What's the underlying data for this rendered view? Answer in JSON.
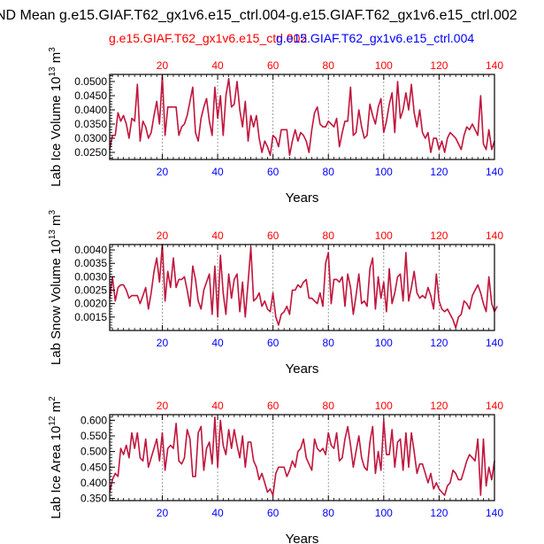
{
  "page": {
    "title": "ND Mean g.e15.GIAF.T62_gx1v6.e15_ctrl.004-g.e15.GIAF.T62_gx1v6.e15_ctrl.002",
    "legend_red": "g.e15.GIAF.T62_gx1v6.e15_ctrl.002",
    "legend_blue": "g.e15.GIAF.T62_gx1v6.e15_ctrl.004"
  },
  "colors": {
    "series_a": "#e0162b",
    "series_b": "#b01a4a",
    "top_axis": "#ff0000",
    "bottom_axis": "#0000ff",
    "frame": "#000000",
    "grid": "#888888"
  },
  "chart_data": [
    {
      "type": "line",
      "title": "",
      "xlabel": "Years",
      "ylabel_base": "Lab Ice Volume 10",
      "ylabel_exp": "13",
      "ylabel_unit": " m",
      "ylabel_unit_exp": "3",
      "xlim": [
        1,
        140
      ],
      "ylim": [
        0.0225,
        0.0525
      ],
      "yticks": [
        0.025,
        0.03,
        0.035,
        0.04,
        0.045,
        0.05
      ],
      "yticklabels": [
        "0.0250",
        "0.0300",
        "0.0350",
        "0.0400",
        "0.0450",
        "0.0500"
      ],
      "yminor": 0.001,
      "xticks": [
        20,
        40,
        60,
        80,
        100,
        120,
        140
      ],
      "xticklabels": [
        "20",
        "40",
        "60",
        "80",
        "100",
        "120",
        "140"
      ],
      "grid_x": [
        20,
        40,
        60,
        80,
        100,
        120
      ],
      "series": [
        {
          "name": "g.e15.GIAF.T62_gx1v6.e15_ctrl.002",
          "values": [
            0.026,
            0.031,
            0.031,
            0.039,
            0.036,
            0.038,
            0.035,
            0.03,
            0.037,
            0.036,
            0.049,
            0.029,
            0.036,
            0.034,
            0.03,
            0.032,
            0.038,
            0.043,
            0.035,
            0.052,
            0.031,
            0.041,
            0.041,
            0.041,
            0.041,
            0.031,
            0.034,
            0.035,
            0.038,
            0.043,
            0.048,
            0.032,
            0.029,
            0.037,
            0.041,
            0.044,
            0.036,
            0.031,
            0.048,
            0.037,
            0.045,
            0.031,
            0.045,
            0.051,
            0.041,
            0.042,
            0.05,
            0.04,
            0.034,
            0.043,
            0.029,
            0.038,
            0.034,
            0.038,
            0.03,
            0.025,
            0.029,
            0.027,
            0.024,
            0.031,
            0.03,
            0.027,
            0.033,
            0.033,
            0.033,
            0.024,
            0.029,
            0.033,
            0.029,
            0.032,
            0.031,
            0.029,
            0.025,
            0.033,
            0.039,
            0.041,
            0.035,
            0.034,
            0.034,
            0.036,
            0.035,
            0.034,
            0.037,
            0.027,
            0.032,
            0.036,
            0.036,
            0.048,
            0.031,
            0.032,
            0.04,
            0.034,
            0.03,
            0.031,
            0.042,
            0.038,
            0.035,
            0.041,
            0.044,
            0.032,
            0.036,
            0.042,
            0.046,
            0.032,
            0.05,
            0.037,
            0.04,
            0.046,
            0.04,
            0.049,
            0.039,
            0.034,
            0.04,
            0.032,
            0.03,
            0.032,
            0.025,
            0.03,
            0.03,
            0.026,
            0.029,
            0.025,
            0.03,
            0.032,
            0.031,
            0.03,
            0.028,
            0.026,
            0.031,
            0.034,
            0.033,
            0.035,
            0.033,
            0.031,
            0.045,
            0.028,
            0.026,
            0.033,
            0.026,
            0.029
          ]
        },
        {
          "name": "g.e15.GIAF.T62_gx1v6.e15_ctrl.004",
          "values": [
            0.026,
            0.031,
            0.031,
            0.039,
            0.036,
            0.038,
            0.035,
            0.03,
            0.037,
            0.036,
            0.049,
            0.029,
            0.036,
            0.034,
            0.03,
            0.032,
            0.038,
            0.043,
            0.035,
            0.051,
            0.031,
            0.041,
            0.041,
            0.041,
            0.041,
            0.031,
            0.034,
            0.035,
            0.038,
            0.043,
            0.048,
            0.032,
            0.029,
            0.037,
            0.041,
            0.044,
            0.036,
            0.031,
            0.048,
            0.037,
            0.045,
            0.031,
            0.045,
            0.051,
            0.041,
            0.042,
            0.05,
            0.04,
            0.034,
            0.043,
            0.029,
            0.038,
            0.034,
            0.038,
            0.03,
            0.025,
            0.029,
            0.027,
            0.024,
            0.031,
            0.03,
            0.027,
            0.033,
            0.033,
            0.033,
            0.024,
            0.029,
            0.033,
            0.029,
            0.032,
            0.031,
            0.029,
            0.025,
            0.033,
            0.039,
            0.041,
            0.035,
            0.034,
            0.034,
            0.036,
            0.035,
            0.034,
            0.037,
            0.027,
            0.032,
            0.036,
            0.036,
            0.048,
            0.031,
            0.032,
            0.04,
            0.034,
            0.03,
            0.031,
            0.042,
            0.038,
            0.035,
            0.041,
            0.044,
            0.032,
            0.036,
            0.042,
            0.046,
            0.032,
            0.05,
            0.037,
            0.04,
            0.046,
            0.04,
            0.049,
            0.039,
            0.034,
            0.04,
            0.032,
            0.03,
            0.032,
            0.025,
            0.03,
            0.03,
            0.026,
            0.029,
            0.025,
            0.03,
            0.032,
            0.031,
            0.03,
            0.028,
            0.026,
            0.031,
            0.034,
            0.033,
            0.035,
            0.033,
            0.031,
            0.045,
            0.028,
            0.026,
            0.033,
            0.026,
            0.029
          ]
        }
      ]
    },
    {
      "type": "line",
      "title": "",
      "xlabel": "Years",
      "ylabel_base": "Lab Snow Volume 10",
      "ylabel_exp": "13",
      "ylabel_unit": " m",
      "ylabel_unit_exp": "3",
      "xlim": [
        1,
        140
      ],
      "ylim": [
        0.001,
        0.0042
      ],
      "yticks": [
        0.0015,
        0.002,
        0.0025,
        0.003,
        0.0035,
        0.004
      ],
      "yticklabels": [
        "0.0015",
        "0.0020",
        "0.0025",
        "0.0030",
        "0.0035",
        "0.0040"
      ],
      "yminor": 0.0001,
      "xticks": [
        20,
        40,
        60,
        80,
        100,
        120,
        140
      ],
      "xticklabels": [
        "20",
        "40",
        "60",
        "80",
        "100",
        "120",
        "140"
      ],
      "grid_x": [
        20,
        40,
        60,
        80,
        100,
        120
      ],
      "series": [
        {
          "name": "g.e15.GIAF.T62_gx1v6.e15_ctrl.002",
          "values": [
            0.0022,
            0.003,
            0.0021,
            0.0026,
            0.0027,
            0.0027,
            0.0025,
            0.0022,
            0.0023,
            0.0023,
            0.0023,
            0.002,
            0.0023,
            0.0026,
            0.0018,
            0.0024,
            0.0032,
            0.0037,
            0.0028,
            0.0042,
            0.0021,
            0.0032,
            0.0026,
            0.0037,
            0.0026,
            0.0029,
            0.0029,
            0.003,
            0.0025,
            0.0019,
            0.0034,
            0.0029,
            0.0021,
            0.0018,
            0.0025,
            0.0028,
            0.0031,
            0.0016,
            0.0034,
            0.0015,
            0.0038,
            0.0024,
            0.0016,
            0.0031,
            0.0022,
            0.0029,
            0.0031,
            0.0017,
            0.0028,
            0.0015,
            0.0028,
            0.0041,
            0.0021,
            0.0022,
            0.0024,
            0.0019,
            0.0021,
            0.0018,
            0.0017,
            0.0024,
            0.0015,
            0.0012,
            0.0016,
            0.0017,
            0.0019,
            0.0016,
            0.0025,
            0.0025,
            0.0027,
            0.0026,
            0.0028,
            0.0029,
            0.0022,
            0.0022,
            0.0021,
            0.002,
            0.0024,
            0.0019,
            0.0035,
            0.0039,
            0.002,
            0.0029,
            0.0029,
            0.0028,
            0.003,
            0.0019,
            0.0031,
            0.0026,
            0.0016,
            0.0023,
            0.0031,
            0.002,
            0.0021,
            0.0019,
            0.0033,
            0.0037,
            0.0018,
            0.003,
            0.0022,
            0.0028,
            0.0017,
            0.0033,
            0.002,
            0.0024,
            0.003,
            0.0031,
            0.0021,
            0.0039,
            0.0021,
            0.0026,
            0.0032,
            0.0024,
            0.0022,
            0.0023,
            0.0022,
            0.0026,
            0.0023,
            0.0018,
            0.0031,
            0.0021,
            0.0018,
            0.0017,
            0.0018,
            0.0016,
            0.0014,
            0.0011,
            0.0015,
            0.0016,
            0.0021,
            0.002,
            0.0018,
            0.0023,
            0.0025,
            0.0027,
            0.0024,
            0.002,
            0.0017,
            0.003,
            0.002,
            0.0017,
            0.0019
          ]
        },
        {
          "name": "g.e15.GIAF.T62_gx1v6.e15_ctrl.004",
          "values": [
            0.0022,
            0.003,
            0.0021,
            0.0026,
            0.0027,
            0.0027,
            0.0025,
            0.0022,
            0.0023,
            0.0023,
            0.0023,
            0.002,
            0.0023,
            0.0026,
            0.0018,
            0.0024,
            0.0032,
            0.0037,
            0.0028,
            0.0042,
            0.0021,
            0.0032,
            0.0026,
            0.0037,
            0.0026,
            0.0029,
            0.0029,
            0.003,
            0.0025,
            0.0019,
            0.0034,
            0.0029,
            0.0021,
            0.0018,
            0.0025,
            0.0028,
            0.0031,
            0.0016,
            0.0034,
            0.0015,
            0.0038,
            0.0024,
            0.0016,
            0.0031,
            0.0022,
            0.0029,
            0.0031,
            0.0017,
            0.0028,
            0.0015,
            0.0028,
            0.0041,
            0.0021,
            0.0022,
            0.0024,
            0.0019,
            0.0021,
            0.0018,
            0.0017,
            0.0024,
            0.0015,
            0.0012,
            0.0016,
            0.0017,
            0.0019,
            0.0016,
            0.0025,
            0.0025,
            0.0027,
            0.0026,
            0.0028,
            0.0029,
            0.0022,
            0.0022,
            0.0021,
            0.002,
            0.0024,
            0.0019,
            0.0035,
            0.0039,
            0.002,
            0.0029,
            0.0029,
            0.0028,
            0.003,
            0.0019,
            0.0031,
            0.0026,
            0.0016,
            0.0023,
            0.0031,
            0.002,
            0.0021,
            0.0019,
            0.0033,
            0.0037,
            0.0018,
            0.003,
            0.0022,
            0.0028,
            0.0017,
            0.0033,
            0.002,
            0.0024,
            0.003,
            0.0031,
            0.0021,
            0.0039,
            0.0021,
            0.0026,
            0.0032,
            0.0024,
            0.0022,
            0.0023,
            0.0022,
            0.0026,
            0.0023,
            0.0018,
            0.0031,
            0.0021,
            0.0018,
            0.0017,
            0.0018,
            0.0016,
            0.0014,
            0.0011,
            0.0015,
            0.0016,
            0.0021,
            0.002,
            0.0018,
            0.0023,
            0.0025,
            0.0027,
            0.0024,
            0.002,
            0.0017,
            0.003,
            0.002,
            0.0017,
            0.0019
          ]
        }
      ]
    },
    {
      "type": "line",
      "title": "",
      "xlabel": "Years",
      "ylabel_base": "Lab Ice Area 10",
      "ylabel_exp": "12",
      "ylabel_unit": " m",
      "ylabel_unit_exp": "2",
      "xlim": [
        1,
        140
      ],
      "ylim": [
        0.343,
        0.618
      ],
      "yticks": [
        0.35,
        0.4,
        0.45,
        0.5,
        0.55,
        0.6
      ],
      "yticklabels": [
        "0.350",
        "0.400",
        "0.450",
        "0.500",
        "0.550",
        "0.600"
      ],
      "yminor": 0.01,
      "xticks": [
        20,
        40,
        60,
        80,
        100,
        120,
        140
      ],
      "xticklabels": [
        "20",
        "40",
        "60",
        "80",
        "100",
        "120",
        "140"
      ],
      "grid_x": [
        20,
        40,
        60,
        80,
        100,
        120
      ],
      "series": [
        {
          "name": "g.e15.GIAF.T62_gx1v6.e15_ctrl.002",
          "values": [
            0.37,
            0.41,
            0.43,
            0.42,
            0.51,
            0.49,
            0.52,
            0.48,
            0.56,
            0.51,
            0.56,
            0.48,
            0.47,
            0.54,
            0.45,
            0.48,
            0.51,
            0.54,
            0.47,
            0.56,
            0.44,
            0.51,
            0.52,
            0.51,
            0.59,
            0.47,
            0.46,
            0.48,
            0.57,
            0.54,
            0.42,
            0.42,
            0.56,
            0.58,
            0.44,
            0.51,
            0.53,
            0.46,
            0.61,
            0.45,
            0.6,
            0.52,
            0.49,
            0.57,
            0.51,
            0.57,
            0.52,
            0.48,
            0.55,
            0.45,
            0.53,
            0.53,
            0.47,
            0.45,
            0.41,
            0.43,
            0.4,
            0.37,
            0.38,
            0.36,
            0.43,
            0.45,
            0.45,
            0.45,
            0.42,
            0.44,
            0.47,
            0.45,
            0.5,
            0.51,
            0.54,
            0.48,
            0.46,
            0.44,
            0.54,
            0.51,
            0.5,
            0.51,
            0.49,
            0.56,
            0.52,
            0.51,
            0.56,
            0.47,
            0.48,
            0.54,
            0.58,
            0.52,
            0.45,
            0.5,
            0.55,
            0.48,
            0.45,
            0.44,
            0.53,
            0.58,
            0.43,
            0.5,
            0.44,
            0.6,
            0.49,
            0.49,
            0.57,
            0.45,
            0.53,
            0.54,
            0.44,
            0.56,
            0.45,
            0.56,
            0.5,
            0.43,
            0.46,
            0.46,
            0.43,
            0.4,
            0.43,
            0.38,
            0.4,
            0.38,
            0.37,
            0.36,
            0.39,
            0.4,
            0.44,
            0.43,
            0.41,
            0.41,
            0.44,
            0.47,
            0.49,
            0.48,
            0.47,
            0.54,
            0.36,
            0.54,
            0.39,
            0.45,
            0.41,
            0.47
          ]
        },
        {
          "name": "g.e15.GIAF.T62_gx1v6.e15_ctrl.004",
          "values": [
            0.37,
            0.41,
            0.43,
            0.42,
            0.51,
            0.49,
            0.52,
            0.48,
            0.56,
            0.51,
            0.56,
            0.48,
            0.47,
            0.54,
            0.45,
            0.48,
            0.51,
            0.54,
            0.47,
            0.56,
            0.44,
            0.51,
            0.52,
            0.51,
            0.59,
            0.47,
            0.46,
            0.48,
            0.57,
            0.54,
            0.42,
            0.42,
            0.56,
            0.58,
            0.44,
            0.51,
            0.53,
            0.46,
            0.61,
            0.45,
            0.6,
            0.52,
            0.49,
            0.57,
            0.51,
            0.57,
            0.52,
            0.48,
            0.55,
            0.45,
            0.53,
            0.53,
            0.47,
            0.45,
            0.41,
            0.43,
            0.4,
            0.37,
            0.38,
            0.36,
            0.43,
            0.45,
            0.45,
            0.45,
            0.42,
            0.44,
            0.47,
            0.45,
            0.5,
            0.51,
            0.54,
            0.48,
            0.46,
            0.44,
            0.54,
            0.51,
            0.5,
            0.51,
            0.49,
            0.56,
            0.52,
            0.51,
            0.56,
            0.47,
            0.48,
            0.54,
            0.58,
            0.52,
            0.45,
            0.5,
            0.55,
            0.48,
            0.45,
            0.44,
            0.53,
            0.58,
            0.43,
            0.5,
            0.44,
            0.6,
            0.49,
            0.49,
            0.57,
            0.45,
            0.53,
            0.54,
            0.44,
            0.56,
            0.45,
            0.56,
            0.5,
            0.43,
            0.46,
            0.46,
            0.43,
            0.4,
            0.43,
            0.38,
            0.4,
            0.38,
            0.37,
            0.36,
            0.39,
            0.4,
            0.44,
            0.43,
            0.41,
            0.41,
            0.44,
            0.47,
            0.49,
            0.48,
            0.47,
            0.54,
            0.36,
            0.54,
            0.39,
            0.45,
            0.41,
            0.47
          ]
        }
      ]
    }
  ]
}
